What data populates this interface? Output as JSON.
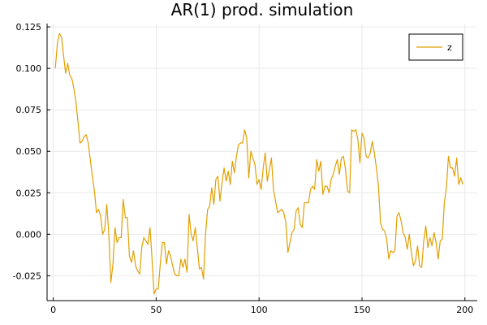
{
  "chart_data": {
    "type": "line",
    "title": "AR(1) prod. simulation",
    "xlabel": "",
    "ylabel": "",
    "xlim": [
      -3,
      206
    ],
    "ylim": [
      -0.04,
      0.127
    ],
    "x_ticks": [
      0,
      50,
      100,
      150,
      200
    ],
    "x_tick_labels": [
      "0",
      "50",
      "100",
      "150",
      "200"
    ],
    "y_ticks": [
      -0.025,
      0,
      0.025,
      0.05,
      0.075,
      0.1,
      0.125
    ],
    "y_tick_labels": [
      "-0.025",
      "0.000",
      "0.025",
      "0.050",
      "0.075",
      "0.100",
      "0.125"
    ],
    "grid": true,
    "legend_position": "top-right",
    "series": [
      {
        "name": "z",
        "color": "#e29f00",
        "x_start": 1,
        "values": [
          0.1,
          0.115,
          0.121,
          0.119,
          0.108,
          0.097,
          0.103,
          0.096,
          0.094,
          0.088,
          0.08,
          0.068,
          0.055,
          0.056,
          0.059,
          0.06,
          0.055,
          0.045,
          0.035,
          0.026,
          0.013,
          0.015,
          0.011,
          0.0,
          0.003,
          0.018,
          0.0,
          -0.029,
          -0.018,
          0.004,
          -0.005,
          -0.002,
          -0.002,
          0.021,
          0.01,
          0.01,
          -0.013,
          -0.017,
          -0.01,
          -0.019,
          -0.022,
          -0.024,
          -0.008,
          -0.002,
          -0.004,
          -0.006,
          0.004,
          -0.015,
          -0.036,
          -0.033,
          -0.033,
          -0.018,
          -0.005,
          -0.005,
          -0.018,
          -0.01,
          -0.013,
          -0.019,
          -0.024,
          -0.025,
          -0.025,
          -0.015,
          -0.02,
          -0.015,
          -0.023,
          0.012,
          0.0,
          -0.004,
          0.004,
          -0.008,
          -0.021,
          -0.02,
          -0.027,
          0.0,
          0.015,
          0.017,
          0.028,
          0.018,
          0.033,
          0.035,
          0.02,
          0.031,
          0.04,
          0.032,
          0.038,
          0.03,
          0.044,
          0.037,
          0.047,
          0.054,
          0.055,
          0.055,
          0.063,
          0.058,
          0.034,
          0.05,
          0.046,
          0.042,
          0.03,
          0.033,
          0.027,
          0.04,
          0.049,
          0.032,
          0.039,
          0.046,
          0.027,
          0.02,
          0.013,
          0.014,
          0.015,
          0.013,
          0.007,
          -0.011,
          -0.005,
          0.001,
          0.003,
          0.014,
          0.016,
          0.006,
          0.004,
          0.019,
          0.019,
          0.019,
          0.027,
          0.029,
          0.027,
          0.045,
          0.038,
          0.044,
          0.024,
          0.029,
          0.029,
          0.025,
          0.033,
          0.036,
          0.041,
          0.045,
          0.036,
          0.046,
          0.047,
          0.039,
          0.026,
          0.025,
          0.063,
          0.062,
          0.063,
          0.057,
          0.043,
          0.061,
          0.058,
          0.047,
          0.046,
          0.049,
          0.056,
          0.049,
          0.04,
          0.029,
          0.007,
          0.003,
          0.002,
          -0.003,
          -0.015,
          -0.01,
          -0.011,
          -0.01,
          0.011,
          0.013,
          0.008,
          0.001,
          -0.002,
          -0.009,
          0.0,
          -0.011,
          -0.019,
          -0.016,
          -0.007,
          -0.019,
          -0.02,
          -0.004,
          0.005,
          -0.008,
          -0.002,
          -0.007,
          0.001,
          -0.005,
          -0.015,
          -0.004,
          -0.003,
          0.019,
          0.028,
          0.047,
          0.04,
          0.04,
          0.035,
          0.046,
          0.03,
          0.034,
          0.03
        ]
      }
    ]
  }
}
